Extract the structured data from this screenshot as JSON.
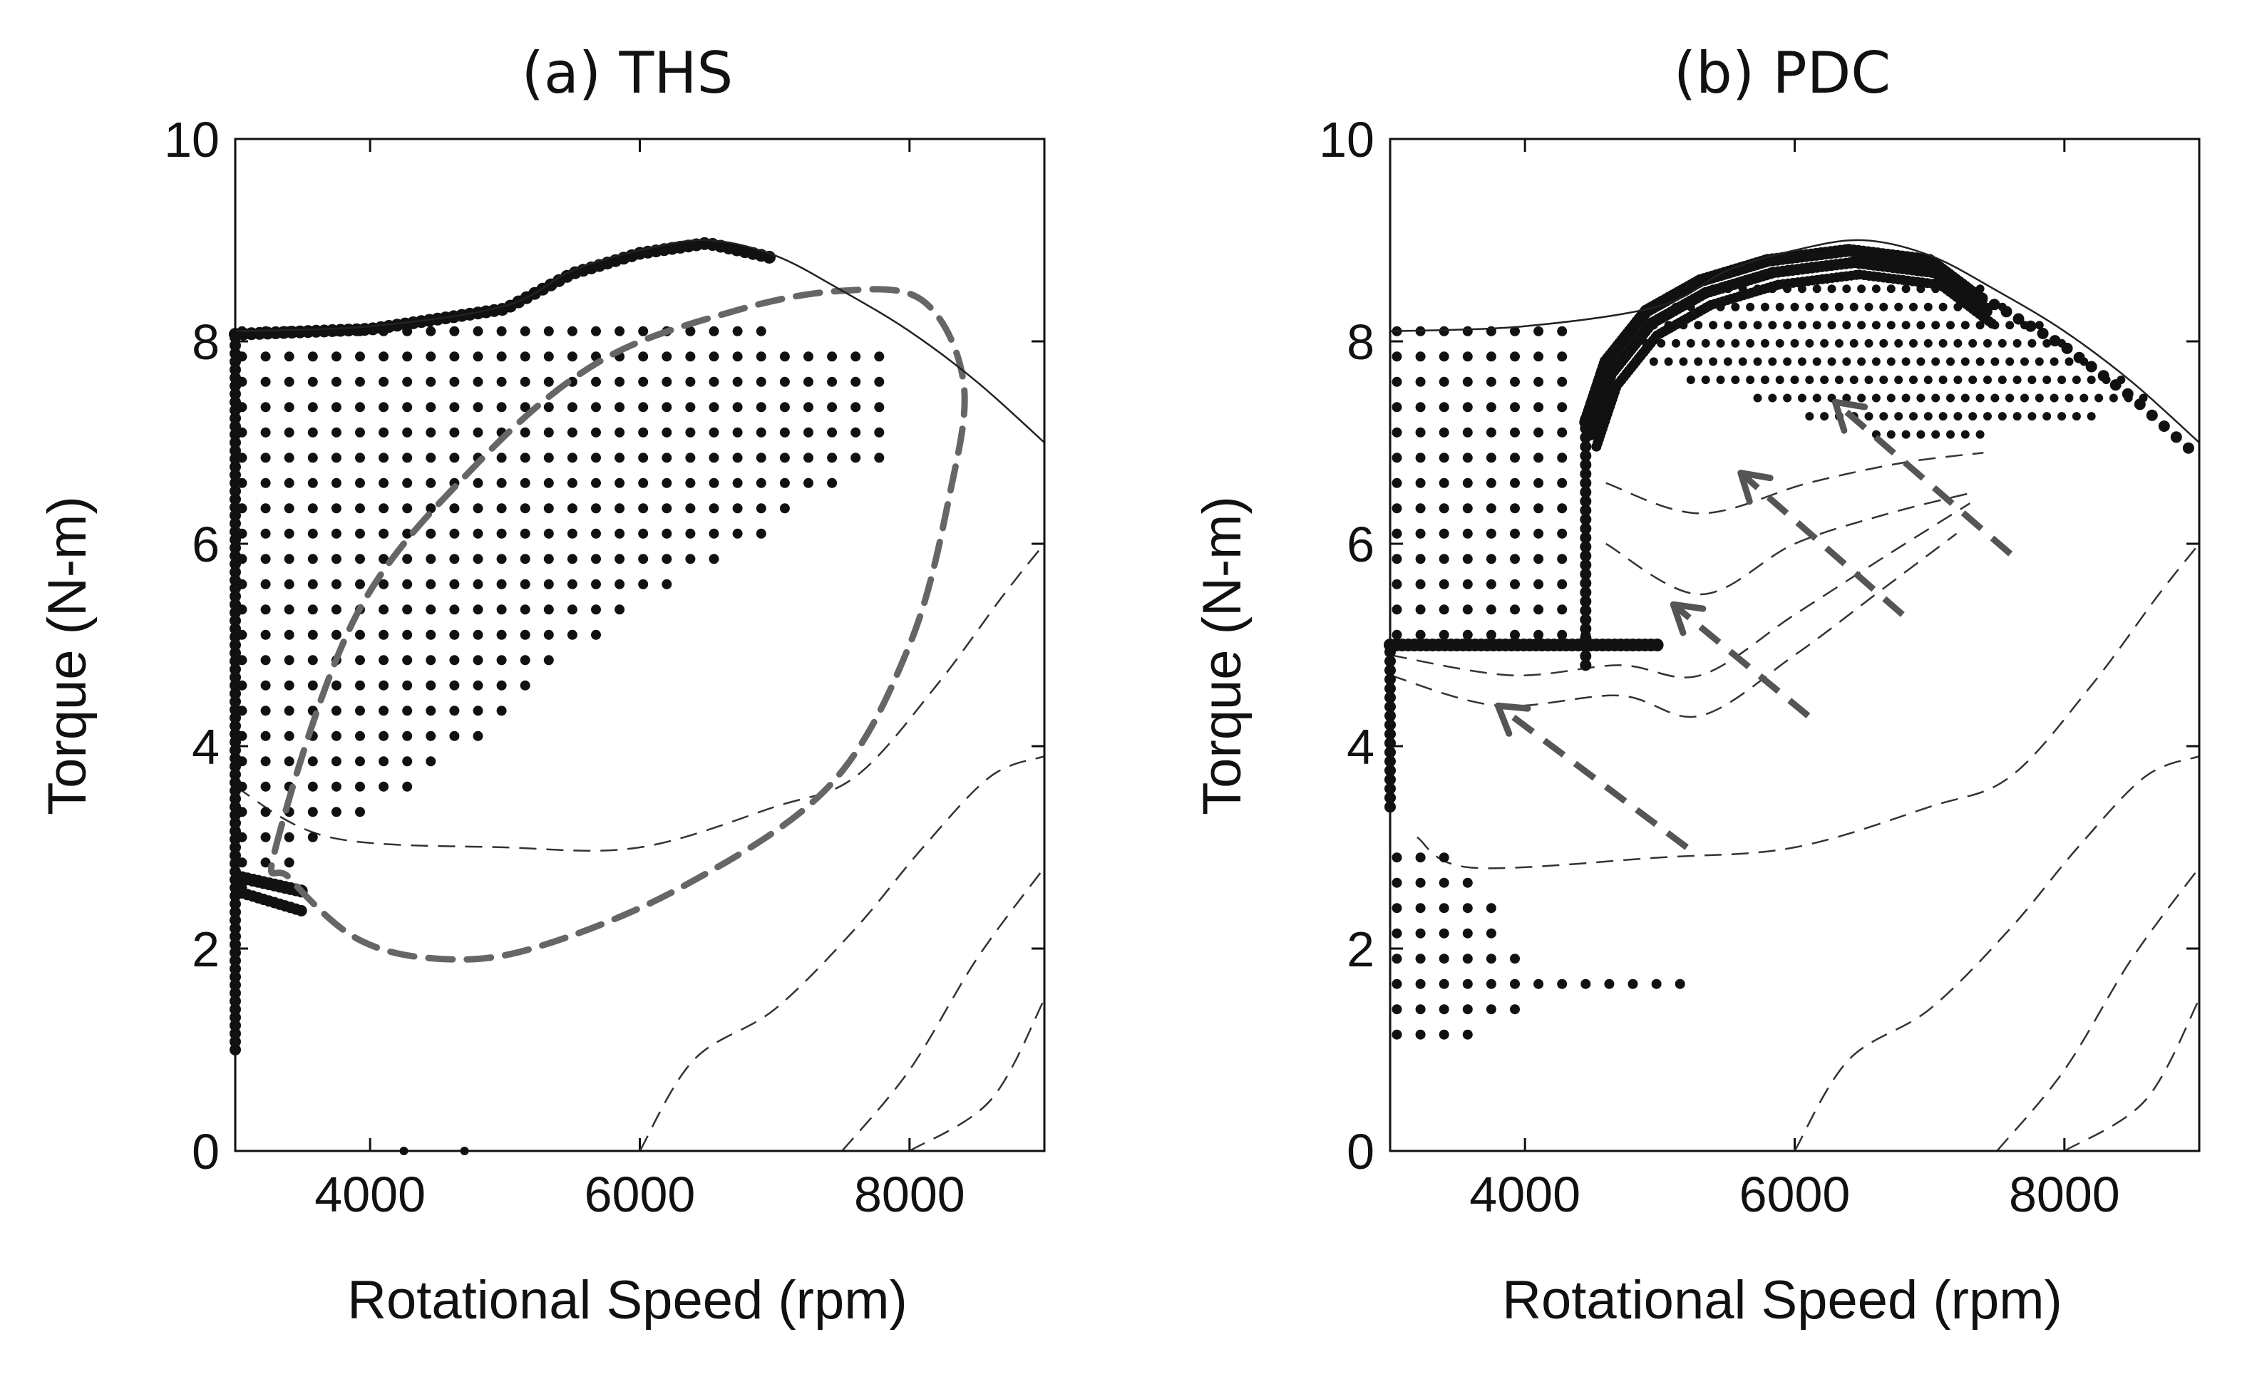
{
  "chart_data": [
    {
      "type": "scatter",
      "title": "(a) THS",
      "xlabel": "Rotational Speed (rpm)",
      "ylabel": "Torque (N-m)",
      "xlim": [
        3000,
        9000
      ],
      "ylim": [
        0,
        10
      ],
      "xticks": [
        4000,
        6000,
        8000
      ],
      "yticks": [
        0,
        2,
        4,
        6,
        8,
        10
      ],
      "max_torque_curve": [
        [
          3000,
          8.1
        ],
        [
          4000,
          8.15
        ],
        [
          5000,
          8.35
        ],
        [
          5500,
          8.7
        ],
        [
          6000,
          8.9
        ],
        [
          6500,
          9.0
        ],
        [
          7000,
          8.85
        ],
        [
          7500,
          8.5
        ],
        [
          8000,
          8.1
        ],
        [
          8500,
          7.6
        ],
        [
          9000,
          7.0
        ]
      ],
      "operating_points": {
        "vertical_line": {
          "x": 3000,
          "y_range": [
            1.0,
            8.1
          ]
        },
        "grid_rows": [
          {
            "y": 8.1,
            "x_max": 7000
          },
          {
            "y": 7.85,
            "x_max": 7900
          },
          {
            "y": 7.6,
            "x_max": 7900
          },
          {
            "y": 7.35,
            "x_max": 7900
          },
          {
            "y": 7.1,
            "x_max": 7900
          },
          {
            "y": 6.85,
            "x_max": 7900
          },
          {
            "y": 6.6,
            "x_max": 7500
          },
          {
            "y": 6.35,
            "x_max": 7200
          },
          {
            "y": 6.1,
            "x_max": 6900
          },
          {
            "y": 5.85,
            "x_max": 6600
          },
          {
            "y": 5.6,
            "x_max": 6300
          },
          {
            "y": 5.35,
            "x_max": 6000
          },
          {
            "y": 5.1,
            "x_max": 5700
          },
          {
            "y": 4.85,
            "x_max": 5400
          },
          {
            "y": 4.6,
            "x_max": 5200
          },
          {
            "y": 4.35,
            "x_max": 5000
          },
          {
            "y": 4.1,
            "x_max": 4800
          },
          {
            "y": 3.85,
            "x_max": 4600
          },
          {
            "y": 3.6,
            "x_max": 4300
          },
          {
            "y": 3.35,
            "x_max": 4000
          },
          {
            "y": 3.1,
            "x_max": 3700
          },
          {
            "y": 2.85,
            "x_max": 3400
          },
          {
            "y": 2.6,
            "x_max": 3200
          },
          {
            "y": 2.35,
            "x_max": 3000
          },
          {
            "y": 2.1,
            "x_max": 2800
          },
          {
            "y": 1.85,
            "x_max": 2600
          }
        ]
      },
      "high_efficiency_region": [
        [
          3300,
          3.0
        ],
        [
          3900,
          5.3
        ],
        [
          4800,
          6.8
        ],
        [
          5700,
          7.8
        ],
        [
          6700,
          8.3
        ],
        [
          7500,
          8.5
        ],
        [
          8100,
          8.4
        ],
        [
          8400,
          7.6
        ],
        [
          8300,
          6.5
        ],
        [
          8000,
          5.0
        ],
        [
          7400,
          3.6
        ],
        [
          6300,
          2.6
        ],
        [
          5200,
          2.0
        ],
        [
          4500,
          1.9
        ],
        [
          3900,
          2.1
        ],
        [
          3400,
          2.7
        ]
      ],
      "efficiency_contours": [
        [
          [
            3000,
            3.6
          ],
          [
            3700,
            3.1
          ],
          [
            5000,
            3.0
          ],
          [
            6000,
            3.0
          ],
          [
            7000,
            3.4
          ],
          [
            7600,
            3.7
          ],
          [
            8200,
            4.6
          ],
          [
            8700,
            5.5
          ],
          [
            9000,
            6.0
          ]
        ],
        [
          [
            6000,
            0
          ],
          [
            6400,
            0.9
          ],
          [
            7000,
            1.4
          ],
          [
            7600,
            2.2
          ],
          [
            8100,
            3.0
          ],
          [
            8600,
            3.7
          ],
          [
            9000,
            3.9
          ]
        ],
        [
          [
            7500,
            0
          ],
          [
            8000,
            0.8
          ],
          [
            8500,
            1.9
          ],
          [
            9000,
            2.8
          ]
        ],
        [
          [
            8000,
            0
          ],
          [
            8600,
            0.5
          ],
          [
            9000,
            1.5
          ]
        ]
      ]
    },
    {
      "type": "scatter",
      "title": "(b) PDC",
      "xlabel": "Rotational Speed (rpm)",
      "ylabel": "Torque (N-m)",
      "xlim": [
        3000,
        9000
      ],
      "ylim": [
        0,
        10
      ],
      "xticks": [
        4000,
        6000,
        8000
      ],
      "yticks": [
        0,
        2,
        4,
        6,
        8,
        10
      ],
      "max_torque_curve": [
        [
          3000,
          8.1
        ],
        [
          4000,
          8.15
        ],
        [
          5000,
          8.35
        ],
        [
          5500,
          8.7
        ],
        [
          6000,
          8.9
        ],
        [
          6500,
          9.0
        ],
        [
          7000,
          8.85
        ],
        [
          7500,
          8.5
        ],
        [
          8000,
          8.1
        ],
        [
          8500,
          7.6
        ],
        [
          9000,
          7.0
        ]
      ],
      "operating_points": {
        "low_speed_block_rows": [
          {
            "y": 8.1,
            "x_max": 4300
          },
          {
            "y": 7.85,
            "x_max": 4300
          },
          {
            "y": 7.6,
            "x_max": 4300
          },
          {
            "y": 7.35,
            "x_max": 4300
          },
          {
            "y": 7.1,
            "x_max": 4300
          },
          {
            "y": 6.85,
            "x_max": 4300
          },
          {
            "y": 6.6,
            "x_max": 4300
          },
          {
            "y": 6.35,
            "x_max": 4300
          },
          {
            "y": 6.1,
            "x_max": 4300
          },
          {
            "y": 5.85,
            "x_max": 4300
          },
          {
            "y": 5.6,
            "x_max": 4300
          },
          {
            "y": 5.35,
            "x_max": 4300
          },
          {
            "y": 5.1,
            "x_max": 4500
          }
        ],
        "torque_5_line": {
          "y": 5.0,
          "x_range": [
            3000,
            5000
          ]
        },
        "vertical_line": {
          "x": 4450,
          "y_range": [
            4.8,
            7.3
          ]
        },
        "bottom_block_rows": [
          {
            "y": 2.9,
            "x_max": 3500
          },
          {
            "y": 2.65,
            "x_max": 3700
          },
          {
            "y": 2.4,
            "x_max": 3800
          },
          {
            "y": 2.15,
            "x_max": 3900
          },
          {
            "y": 1.9,
            "x_max": 4000
          },
          {
            "y": 1.65,
            "x_max": 5200
          },
          {
            "y": 1.4,
            "x_max": 4000
          },
          {
            "y": 1.15,
            "x_max": 3700
          }
        ],
        "high_torque_band_peak": 8.9
      },
      "arrows": [
        {
          "from": [
            5200,
            3.0
          ],
          "to": [
            3800,
            4.4
          ]
        },
        {
          "from": [
            6100,
            4.3
          ],
          "to": [
            5100,
            5.4
          ]
        },
        {
          "from": [
            6800,
            5.3
          ],
          "to": [
            5600,
            6.7
          ]
        },
        {
          "from": [
            7600,
            5.9
          ],
          "to": [
            6300,
            7.4
          ]
        }
      ],
      "efficiency_contours": [
        [
          [
            3200,
            3.1
          ],
          [
            3600,
            2.8
          ],
          [
            5000,
            2.9
          ],
          [
            6000,
            3.0
          ],
          [
            7000,
            3.4
          ],
          [
            7600,
            3.7
          ],
          [
            8200,
            4.6
          ],
          [
            8700,
            5.5
          ],
          [
            9000,
            6.0
          ]
        ],
        [
          [
            3000,
            4.7
          ],
          [
            3800,
            4.4
          ],
          [
            4700,
            4.5
          ],
          [
            5300,
            4.3
          ],
          [
            6000,
            4.9
          ],
          [
            6600,
            5.5
          ],
          [
            7200,
            6.1
          ]
        ],
        [
          [
            3000,
            4.9
          ],
          [
            3900,
            4.7
          ],
          [
            4700,
            4.8
          ],
          [
            5300,
            4.7
          ],
          [
            6000,
            5.3
          ],
          [
            6700,
            5.9
          ],
          [
            7300,
            6.4
          ]
        ],
        [
          [
            4600,
            6.0
          ],
          [
            5300,
            5.5
          ],
          [
            6000,
            6.0
          ],
          [
            6700,
            6.3
          ],
          [
            7300,
            6.5
          ]
        ],
        [
          [
            4600,
            6.6
          ],
          [
            5300,
            6.3
          ],
          [
            6100,
            6.6
          ],
          [
            6800,
            6.8
          ],
          [
            7400,
            6.9
          ]
        ],
        [
          [
            6000,
            0
          ],
          [
            6400,
            0.9
          ],
          [
            7000,
            1.4
          ],
          [
            7600,
            2.2
          ],
          [
            8100,
            3.0
          ],
          [
            8600,
            3.7
          ],
          [
            9000,
            3.9
          ]
        ],
        [
          [
            7500,
            0
          ],
          [
            8000,
            0.8
          ],
          [
            8500,
            1.9
          ],
          [
            9000,
            2.8
          ]
        ],
        [
          [
            8000,
            0
          ],
          [
            8600,
            0.5
          ],
          [
            9000,
            1.5
          ]
        ]
      ]
    }
  ]
}
